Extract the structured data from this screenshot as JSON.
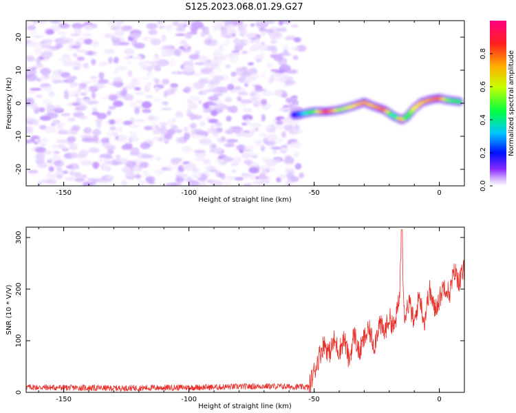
{
  "title": "S125.2023.068.01.29.G27",
  "chart_data": [
    {
      "type": "heatmap",
      "xlabel": "Height of straight line (km)",
      "ylabel": "Frequency (Hz)",
      "xlim": [
        -165,
        10
      ],
      "ylim": [
        -25,
        25
      ],
      "xticks": [
        -150,
        -100,
        -50,
        0
      ],
      "yticks": [
        -20,
        -10,
        0,
        10,
        20
      ],
      "colorbar": {
        "label": "Normalized spectral amplitude",
        "range": [
          0,
          1
        ],
        "ticks": [
          "0.0",
          "0.2",
          "0.4",
          "0.6",
          "0.8"
        ],
        "colors": [
          "#ffffff",
          "#c8a0ff",
          "#7a00ff",
          "#0000ff",
          "#00ffff",
          "#00ff00",
          "#ffff00",
          "#ff8000",
          "#ff0066"
        ]
      },
      "noise_region_km": [
        -165,
        -55
      ],
      "signal_ridge": {
        "x": [
          -58,
          -55,
          -50,
          -45,
          -40,
          -35,
          -30,
          -27,
          -22,
          -18,
          -15,
          -13,
          -10,
          -7,
          -3,
          0,
          3,
          8
        ],
        "y": [
          -3.5,
          -3.2,
          -2.5,
          -2.5,
          -2.0,
          -1.0,
          0.3,
          -0.7,
          -2.0,
          -4.0,
          -5.0,
          -4.2,
          -1.5,
          0.3,
          1.2,
          1.5,
          1.0,
          0.5
        ],
        "amplitude": [
          0.35,
          0.45,
          0.65,
          0.95,
          0.7,
          0.75,
          0.85,
          0.8,
          0.9,
          0.5,
          0.85,
          0.6,
          0.75,
          0.8,
          0.85,
          0.9,
          0.7,
          0.6
        ]
      }
    },
    {
      "type": "line",
      "xlabel": "Height of straight line (km)",
      "ylabel": "SNR (10 * V/V)",
      "xlim": [
        -165,
        10
      ],
      "ylim": [
        0,
        320
      ],
      "xticks": [
        -150,
        -100,
        -50,
        0
      ],
      "yticks": [
        0,
        100,
        200,
        300
      ],
      "color": "#e8302a",
      "series": [
        {
          "x": [
            -165,
            -150,
            -130,
            -110,
            -90,
            -70,
            -60,
            -52,
            -50,
            -48,
            -46,
            -44,
            -42,
            -40,
            -38,
            -36,
            -34,
            -32,
            -30,
            -28,
            -26,
            -24,
            -22,
            -20,
            -18,
            -16,
            -15,
            -14,
            -12,
            -10,
            -8,
            -6,
            -4,
            -2,
            0,
            2,
            4,
            6,
            8,
            10
          ],
          "values": [
            10,
            9,
            8,
            9,
            10,
            12,
            11,
            10,
            40,
            70,
            95,
            75,
            100,
            80,
            105,
            60,
            115,
            75,
            105,
            120,
            90,
            135,
            115,
            145,
            125,
            180,
            315,
            150,
            175,
            130,
            190,
            135,
            200,
            160,
            180,
            210,
            190,
            235,
            215,
            240
          ]
        }
      ]
    }
  ]
}
